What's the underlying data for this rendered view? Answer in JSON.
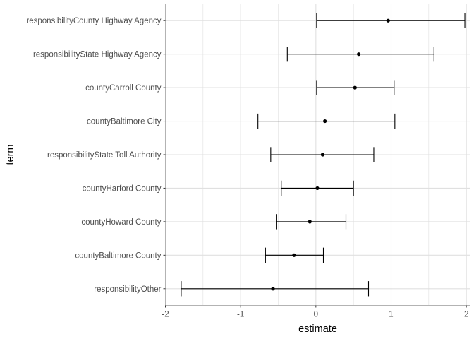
{
  "chart_data": {
    "type": "scatter",
    "subtype": "coefficient-plot-with-error-bars",
    "title": "",
    "xlabel": "estimate",
    "ylabel": "term",
    "xlim": [
      -2,
      2.05
    ],
    "x_ticks": [
      -2,
      -1,
      0,
      1,
      2
    ],
    "x_tick_labels": [
      "-2",
      "-1",
      "0",
      "1",
      "2"
    ],
    "grid": true,
    "legend": "none",
    "categories": [
      "responsibilityOther",
      "countyBaltimore County",
      "countyHoward County",
      "countyHarford County",
      "responsibilityState Toll Authority",
      "countyBaltimore City",
      "countyCarroll County",
      "responsibilityState Highway Agency",
      "responsibilityCounty Highway Agency"
    ],
    "series": [
      {
        "estimate": [
          -0.57,
          -0.29,
          -0.08,
          0.02,
          0.09,
          0.12,
          0.52,
          0.57,
          0.96
        ],
        "conf_low": [
          -1.79,
          -0.67,
          -0.52,
          -0.46,
          -0.6,
          -0.77,
          0.01,
          -0.38,
          0.01
        ],
        "conf_high": [
          0.7,
          0.1,
          0.4,
          0.5,
          0.77,
          1.05,
          1.04,
          1.57,
          1.98
        ]
      }
    ],
    "colors": {
      "panel_background": "#ffffff",
      "panel_border": "#b3b3b3",
      "gridline": "#e0e0e0",
      "mark": "#000000"
    }
  }
}
